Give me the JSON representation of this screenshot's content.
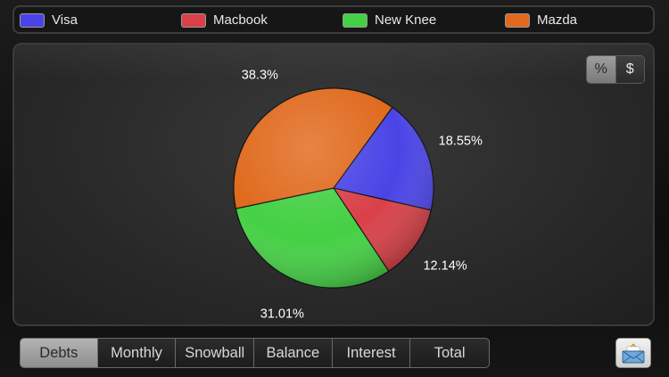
{
  "legend": {
    "items": [
      {
        "label": "Visa",
        "color": "#4a44e6"
      },
      {
        "label": "Macbook",
        "color": "#d94048"
      },
      {
        "label": "New Knee",
        "color": "#44d044"
      },
      {
        "label": "Mazda",
        "color": "#e0691c"
      }
    ]
  },
  "toggle": {
    "percent_label": "%",
    "dollar_label": "$",
    "selected": "%"
  },
  "chart_data": {
    "type": "pie",
    "slices": [
      {
        "name": "Visa",
        "value": 18.55,
        "label": "18.55%",
        "color": "#4a44e6"
      },
      {
        "name": "Macbook",
        "value": 12.14,
        "label": "12.14%",
        "color": "#d94048"
      },
      {
        "name": "New Knee",
        "value": 31.01,
        "label": "31.01%",
        "color": "#44d044"
      },
      {
        "name": "Mazda",
        "value": 38.3,
        "label": "38.3%",
        "color": "#e0691c"
      }
    ],
    "legend_position": "top"
  },
  "tabs": {
    "items": [
      "Debts",
      "Monthly",
      "Snowball",
      "Balance",
      "Interest",
      "Total"
    ],
    "selected": "Debts"
  },
  "mail_button": {
    "icon": "mail-icon"
  }
}
